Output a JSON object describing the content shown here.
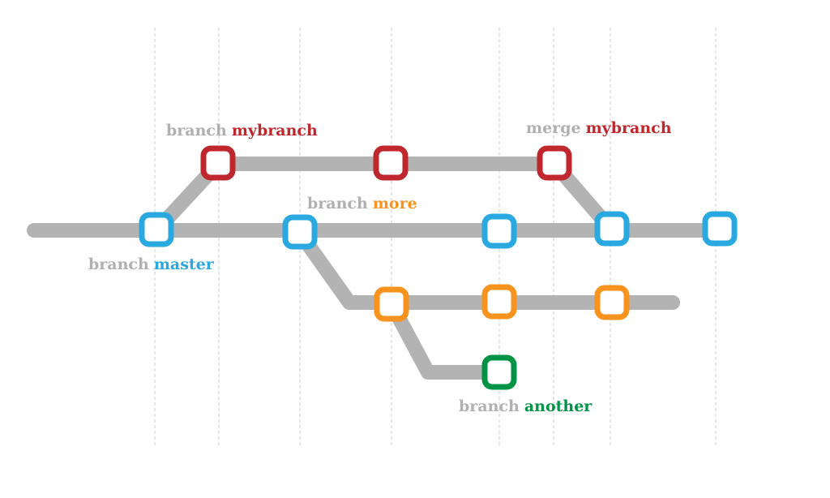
{
  "colors": {
    "master": "#2aa8e0",
    "mybranch": "#c0272d",
    "more": "#f7931e",
    "another": "#009245",
    "track": "#b3b3b3",
    "label_keyword": "#b0b0b0",
    "guide": "#cccccc"
  },
  "labels": {
    "mybranch_created": {
      "keyword": "branch",
      "name": "mybranch"
    },
    "more_created": {
      "keyword": "branch",
      "name": "more"
    },
    "mybranch_merged": {
      "keyword": "merge",
      "name": "mybranch"
    },
    "master": {
      "keyword": "branch",
      "name": "master"
    },
    "another_created": {
      "keyword": "branch",
      "name": "another"
    }
  },
  "branches": [
    {
      "name": "master",
      "commits": 5
    },
    {
      "name": "mybranch",
      "commits": 3
    },
    {
      "name": "more",
      "commits": 3
    },
    {
      "name": "another",
      "commits": 1
    }
  ]
}
